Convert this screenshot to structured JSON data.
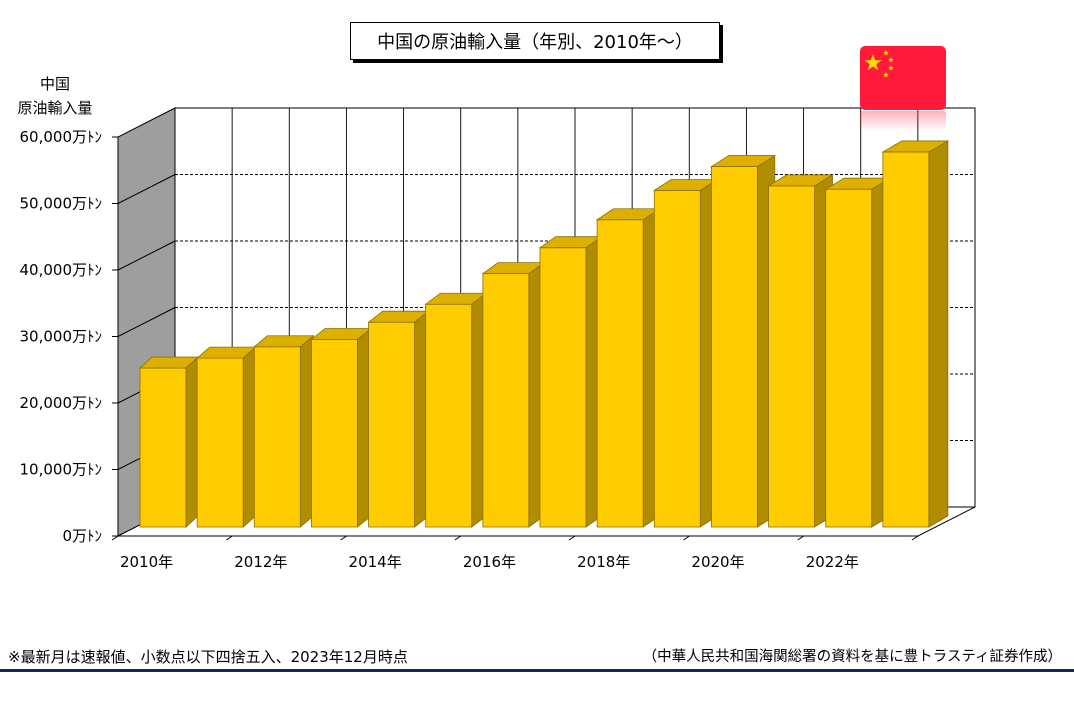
{
  "chart_data": {
    "type": "bar",
    "three_d": true,
    "grid": true,
    "title": "中国の原油輸入量（年別、2010年～）",
    "ylabel": [
      "中国",
      "原油輸入量"
    ],
    "x": [
      2010,
      2011,
      2012,
      2013,
      2014,
      2015,
      2016,
      2017,
      2018,
      2019,
      2020,
      2021,
      2022,
      2023
    ],
    "values": [
      23900,
      25400,
      27100,
      28200,
      30800,
      33500,
      38100,
      42000,
      46200,
      50600,
      54200,
      51300,
      50800,
      56400
    ],
    "ylim": [
      0,
      60000
    ],
    "yticks": [
      0,
      10000,
      20000,
      30000,
      40000,
      50000,
      60000
    ],
    "yticklabels": [
      "0万ﾄﾝ",
      "10,000万ﾄﾝ",
      "20,000万ﾄﾝ",
      "30,000万ﾄﾝ",
      "40,000万ﾄﾝ",
      "50,000万ﾄﾝ",
      "60,000万ﾄﾝ"
    ],
    "xticks": [
      2010,
      2012,
      2014,
      2016,
      2018,
      2020,
      2022
    ],
    "xticklabels": [
      "2010年",
      "2012年",
      "2014年",
      "2016年",
      "2018年",
      "2020年",
      "2022年"
    ]
  },
  "notes": {
    "left": "※最新月は速報値、小数点以下四捨五入、2023年12月時点",
    "right": "（中華人民共和国海関総署の資料を基に豊トラスティ証券作成）"
  },
  "flag": {
    "icon": "china-flag-icon",
    "red": "#FF1A3C",
    "star": "#FFDE00"
  },
  "colors": {
    "bar_front": "#FFCC00",
    "bar_top": "#DDB000",
    "bar_side": "#B08C00",
    "bar_edge": "#8C7000",
    "side_wall": "#9E9E9E",
    "rule": "#13275A"
  }
}
